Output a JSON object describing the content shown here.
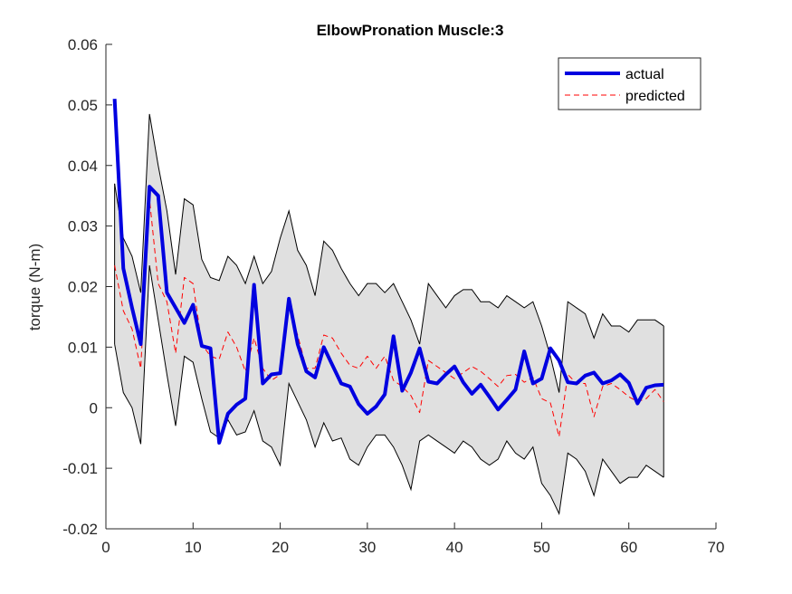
{
  "chart_data": {
    "type": "line",
    "title": "ElbowPronation Muscle:3",
    "xlabel": "",
    "ylabel": "torque (N-m)",
    "xlim": [
      0,
      70
    ],
    "ylim": [
      -0.02,
      0.06
    ],
    "xticks": [
      0,
      10,
      20,
      30,
      40,
      50,
      60,
      70
    ],
    "yticks": [
      -0.02,
      -0.01,
      0,
      0.01,
      0.02,
      0.03,
      0.04,
      0.05,
      0.06
    ],
    "ytick_labels": [
      "-0.02",
      "-0.01",
      "0",
      "0.01",
      "0.02",
      "0.03",
      "0.04",
      "0.05",
      "0.06"
    ],
    "xtick_labels": [
      "0",
      "10",
      "20",
      "30",
      "40",
      "50",
      "60",
      "70"
    ],
    "grid": false,
    "legend_position": "top-right",
    "x": [
      1,
      2,
      3,
      4,
      5,
      6,
      7,
      8,
      9,
      10,
      11,
      12,
      13,
      14,
      15,
      16,
      17,
      18,
      19,
      20,
      21,
      22,
      23,
      24,
      25,
      26,
      27,
      28,
      29,
      30,
      31,
      32,
      33,
      34,
      35,
      36,
      37,
      38,
      39,
      40,
      41,
      42,
      43,
      44,
      45,
      46,
      47,
      48,
      49,
      50,
      51,
      52,
      53,
      54,
      55,
      56,
      57,
      58,
      59,
      60,
      61,
      62,
      63,
      64
    ],
    "series": [
      {
        "name": "actual",
        "color": "#0000e0",
        "style": "solid",
        "values": [
          0.051,
          0.023,
          0.0165,
          0.0105,
          0.0365,
          0.035,
          0.019,
          0.0165,
          0.014,
          0.017,
          0.0102,
          0.0098,
          -0.0058,
          -0.001,
          0.0005,
          0.0015,
          0.0203,
          0.004,
          0.0055,
          0.0057,
          0.018,
          0.0105,
          0.006,
          0.005,
          0.01,
          0.007,
          0.004,
          0.0035,
          0.0006,
          -0.001,
          0.0002,
          0.0022,
          0.0118,
          0.0028,
          0.0058,
          0.0098,
          0.0043,
          0.004,
          0.0055,
          0.0068,
          0.0042,
          0.0023,
          0.0038,
          0.0018,
          -0.0003,
          0.0013,
          0.003,
          0.0093,
          0.004,
          0.0048,
          0.0098,
          0.0078,
          0.0042,
          0.004,
          0.0053,
          0.0058,
          0.004,
          0.0045,
          0.0055,
          0.0041,
          0.0007,
          0.0033,
          0.0037,
          0.0038
        ]
      },
      {
        "name": "predicted",
        "color": "#ff0000",
        "style": "dashed",
        "values": [
          0.0235,
          0.016,
          0.013,
          0.0065,
          0.0345,
          0.0205,
          0.0175,
          0.009,
          0.0215,
          0.0205,
          0.0105,
          0.0085,
          0.008,
          0.0125,
          0.01,
          0.006,
          0.0115,
          0.0065,
          0.0045,
          0.0055,
          0.0165,
          0.012,
          0.0065,
          0.0065,
          0.012,
          0.0115,
          0.009,
          0.007,
          0.0065,
          0.0085,
          0.0065,
          0.0085,
          0.0045,
          0.0035,
          0.002,
          -0.0008,
          0.0078,
          0.0068,
          0.0058,
          0.0048,
          0.0058,
          0.0068,
          0.006,
          0.0048,
          0.0035,
          0.0053,
          0.0055,
          0.0042,
          0.005,
          0.0015,
          0.0008,
          -0.0048,
          0.0055,
          0.004,
          0.004,
          -0.0015,
          0.0035,
          0.004,
          0.003,
          0.0018,
          0.001,
          0.0015,
          0.003,
          0.001
        ]
      }
    ],
    "band": {
      "fill": "#e0e0e0",
      "upper": [
        0.037,
        0.028,
        0.025,
        0.019,
        0.0485,
        0.04,
        0.0325,
        0.022,
        0.0345,
        0.0335,
        0.0245,
        0.0215,
        0.021,
        0.025,
        0.0235,
        0.0205,
        0.025,
        0.0205,
        0.0225,
        0.028,
        0.0325,
        0.026,
        0.0235,
        0.0185,
        0.0275,
        0.026,
        0.023,
        0.0205,
        0.0185,
        0.0205,
        0.0205,
        0.019,
        0.0205,
        0.0175,
        0.0145,
        0.0105,
        0.0205,
        0.0185,
        0.0165,
        0.0185,
        0.0195,
        0.0195,
        0.0175,
        0.0175,
        0.0165,
        0.0185,
        0.0175,
        0.0165,
        0.0175,
        0.0135,
        0.0085,
        0.0025,
        0.0175,
        0.0165,
        0.0155,
        0.0115,
        0.0155,
        0.0135,
        0.0135,
        0.0125,
        0.0145,
        0.0145,
        0.0145,
        0.0135
      ]
    },
    "band_lower": [
      0.0105,
      0.0025,
      0.0,
      -0.006,
      0.0235,
      0.0145,
      0.0055,
      -0.003,
      0.0085,
      0.0075,
      0.0015,
      -0.004,
      -0.005,
      -0.002,
      -0.0045,
      -0.004,
      -0.0005,
      -0.0055,
      -0.0065,
      -0.0095,
      0.004,
      0.001,
      -0.002,
      -0.0065,
      -0.0025,
      -0.0055,
      -0.005,
      -0.0085,
      -0.0095,
      -0.0065,
      -0.0045,
      -0.0045,
      -0.0065,
      -0.0095,
      -0.0135,
      -0.0055,
      -0.0045,
      -0.0055,
      -0.0065,
      -0.0075,
      -0.0055,
      -0.0065,
      -0.0085,
      -0.0095,
      -0.0085,
      -0.0055,
      -0.0075,
      -0.0085,
      -0.0065,
      -0.0125,
      -0.0145,
      -0.0175,
      -0.0075,
      -0.0085,
      -0.0105,
      -0.0145,
      -0.0085,
      -0.0105,
      -0.0125,
      -0.0115,
      -0.0115,
      -0.0095,
      -0.0105,
      -0.0115
    ]
  }
}
